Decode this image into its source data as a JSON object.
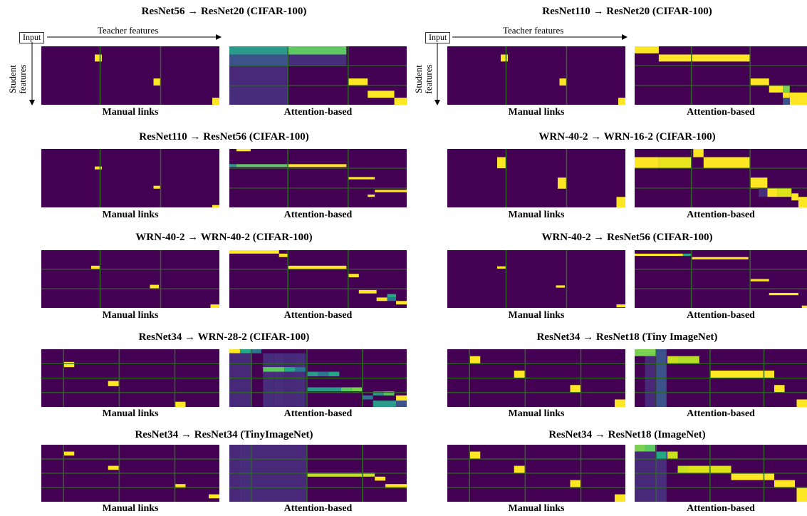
{
  "annotations": {
    "input_label": "Input",
    "teacher_features": "Teacher features",
    "student_features_line1": "Student",
    "student_features_line2": "features"
  },
  "colors": {
    "background_cell": "#440154",
    "grid_line": "#2a6b1e",
    "high": "#fde725",
    "yellow_green": "#c8e020",
    "light_green": "#7ad151",
    "green": "#5ec962",
    "teal": "#22a884",
    "blue_green": "#2a788e",
    "purple_mid": "#472d7b",
    "purple_light": "#482878"
  },
  "panels": [
    {
      "title": "ResNet56 → ResNet20 (CIFAR-100)",
      "manual_caption": "Manual links",
      "attention_caption": "Attention-based",
      "manual_grid": {
        "v": [
          0.33,
          0.67
        ],
        "h": []
      },
      "manual_cells": [
        [
          0.3,
          0.14,
          0.04,
          0.12
        ],
        [
          0.63,
          0.55,
          0.04,
          0.12
        ],
        [
          0.96,
          0.88,
          0.04,
          0.12
        ]
      ],
      "attention_grid": {
        "v": [
          0.33,
          0.67
        ],
        "h": [
          0.33,
          0.67
        ]
      },
      "attention_cells": [
        [
          0.0,
          0.0,
          0.33,
          0.14,
          "#2a9a8a"
        ],
        [
          0.33,
          0.0,
          0.33,
          0.14,
          "#5ec962"
        ],
        [
          0.0,
          0.14,
          0.33,
          0.2,
          "#3b528b"
        ],
        [
          0.33,
          0.14,
          0.33,
          0.2,
          "#472d7b"
        ],
        [
          0.0,
          0.34,
          0.33,
          0.33,
          "#482878"
        ],
        [
          0.0,
          0.67,
          0.33,
          0.33,
          "#472d7b"
        ],
        [
          0.67,
          0.55,
          0.11,
          0.12,
          "#fde725"
        ],
        [
          0.78,
          0.76,
          0.15,
          0.12,
          "#fde725"
        ],
        [
          0.93,
          0.88,
          0.07,
          0.12,
          "#fde725"
        ]
      ]
    },
    {
      "title": "ResNet110 → ResNet20 (CIFAR-100)",
      "manual_caption": "Manual links",
      "attention_caption": "Attention-based",
      "manual_grid": {
        "v": [
          0.33,
          0.67
        ],
        "h": []
      },
      "manual_cells": [
        [
          0.3,
          0.14,
          0.04,
          0.12
        ],
        [
          0.63,
          0.55,
          0.04,
          0.12
        ],
        [
          0.96,
          0.88,
          0.04,
          0.12
        ]
      ],
      "attention_grid": {
        "v": [
          0.33,
          0.67
        ],
        "h": [
          0.33,
          0.67
        ]
      },
      "attention_cells": [
        [
          0.0,
          0.0,
          0.14,
          0.12,
          "#fde725"
        ],
        [
          0.14,
          0.14,
          0.53,
          0.12,
          "#fde725"
        ],
        [
          0.67,
          0.55,
          0.11,
          0.12,
          "#fde725"
        ],
        [
          0.78,
          0.67,
          0.08,
          0.12,
          "#fde725"
        ],
        [
          0.86,
          0.67,
          0.04,
          0.12,
          "#7ad151"
        ],
        [
          0.86,
          0.79,
          0.04,
          0.12,
          "#fde725"
        ],
        [
          0.9,
          0.79,
          0.1,
          0.21,
          "#fde725"
        ],
        [
          0.86,
          0.88,
          0.04,
          0.12,
          "#3b528b"
        ]
      ]
    },
    {
      "title": "ResNet110 → ResNet56 (CIFAR-100)",
      "manual_caption": "Manual links",
      "attention_caption": "Attention-based",
      "manual_grid": {
        "v": [
          0.33,
          0.67
        ],
        "h": []
      },
      "manual_cells": [
        [
          0.3,
          0.3,
          0.04,
          0.05
        ],
        [
          0.63,
          0.63,
          0.04,
          0.05
        ],
        [
          0.96,
          0.96,
          0.04,
          0.04
        ]
      ],
      "attention_grid": {
        "v": [
          0.33,
          0.67
        ],
        "h": [
          0.33,
          0.67
        ]
      },
      "attention_cells": [
        [
          0.04,
          0.0,
          0.08,
          0.04,
          "#fde725"
        ],
        [
          0.0,
          0.26,
          0.04,
          0.05,
          "#2a9a8a"
        ],
        [
          0.04,
          0.26,
          0.29,
          0.05,
          "#5ec962"
        ],
        [
          0.33,
          0.26,
          0.33,
          0.05,
          "#fde725"
        ],
        [
          0.67,
          0.48,
          0.15,
          0.04,
          "#fde725"
        ],
        [
          0.82,
          0.7,
          0.18,
          0.04,
          "#fde725"
        ],
        [
          0.78,
          0.78,
          0.04,
          0.04,
          "#fde725"
        ]
      ]
    },
    {
      "title": "WRN-40-2 → WRN-16-2 (CIFAR-100)",
      "manual_caption": "Manual links",
      "attention_caption": "Attention-based",
      "manual_grid": {
        "v": [
          0.33,
          0.67
        ],
        "h": []
      },
      "manual_cells": [
        [
          0.28,
          0.14,
          0.05,
          0.19
        ],
        [
          0.62,
          0.49,
          0.05,
          0.19
        ],
        [
          0.95,
          0.82,
          0.05,
          0.18
        ]
      ],
      "attention_grid": {
        "v": [
          0.33,
          0.67
        ],
        "h": [
          0.33,
          0.67
        ]
      },
      "attention_cells": [
        [
          0.34,
          0.0,
          0.06,
          0.14,
          "#fde725"
        ],
        [
          0.0,
          0.14,
          0.14,
          0.19,
          "#fde725"
        ],
        [
          0.14,
          0.14,
          0.19,
          0.19,
          "#e8e41e"
        ],
        [
          0.4,
          0.14,
          0.27,
          0.19,
          "#fde725"
        ],
        [
          0.67,
          0.49,
          0.1,
          0.19,
          "#fde725"
        ],
        [
          0.77,
          0.67,
          0.06,
          0.15,
          "#fde725"
        ],
        [
          0.83,
          0.67,
          0.08,
          0.15,
          "#dce319"
        ],
        [
          0.91,
          0.76,
          0.04,
          0.12,
          "#fde725"
        ],
        [
          0.95,
          0.82,
          0.05,
          0.18,
          "#fde725"
        ],
        [
          0.72,
          0.67,
          0.05,
          0.15,
          "#472d7b"
        ]
      ]
    },
    {
      "title": "WRN-40-2 → WRN-40-2 (CIFAR-100)",
      "manual_caption": "Manual links",
      "attention_caption": "Attention-based",
      "manual_grid": {
        "v": [
          0.33,
          0.67
        ],
        "h": [
          0.33,
          0.67
        ]
      },
      "manual_cells": [
        [
          0.28,
          0.27,
          0.05,
          0.06
        ],
        [
          0.61,
          0.6,
          0.05,
          0.06
        ],
        [
          0.95,
          0.94,
          0.05,
          0.06
        ]
      ],
      "attention_grid": {
        "v": [
          0.33,
          0.67
        ],
        "h": [
          0.33,
          0.67
        ]
      },
      "attention_cells": [
        [
          0.0,
          0.0,
          0.28,
          0.06,
          "#fde725"
        ],
        [
          0.28,
          0.06,
          0.05,
          0.06,
          "#fde725"
        ],
        [
          0.33,
          0.27,
          0.33,
          0.06,
          "#fde725"
        ],
        [
          0.67,
          0.41,
          0.06,
          0.06,
          "#fde725"
        ],
        [
          0.73,
          0.69,
          0.1,
          0.06,
          "#fde725"
        ],
        [
          0.83,
          0.82,
          0.06,
          0.06,
          "#fde725"
        ],
        [
          0.89,
          0.76,
          0.05,
          0.06,
          "#22a884"
        ],
        [
          0.89,
          0.82,
          0.05,
          0.06,
          "#2a788e"
        ],
        [
          0.94,
          0.88,
          0.06,
          0.06,
          "#fde725"
        ]
      ]
    },
    {
      "title": "WRN-40-2 → ResNet56 (CIFAR-100)",
      "manual_caption": "Manual links",
      "attention_caption": "Attention-based",
      "manual_grid": {
        "v": [
          0.33,
          0.67
        ],
        "h": []
      },
      "manual_cells": [
        [
          0.28,
          0.28,
          0.05,
          0.04
        ],
        [
          0.61,
          0.61,
          0.05,
          0.04
        ],
        [
          0.95,
          0.94,
          0.05,
          0.05
        ]
      ],
      "attention_grid": {
        "v": [
          0.33,
          0.67
        ],
        "h": [
          0.33,
          0.67
        ]
      },
      "attention_cells": [
        [
          0.0,
          0.06,
          0.28,
          0.04,
          "#fde725"
        ],
        [
          0.28,
          0.06,
          0.05,
          0.04,
          "#22a884"
        ],
        [
          0.33,
          0.12,
          0.33,
          0.04,
          "#fde725"
        ],
        [
          0.67,
          0.5,
          0.11,
          0.04,
          "#fde725"
        ],
        [
          0.78,
          0.74,
          0.17,
          0.04,
          "#fde725"
        ],
        [
          0.97,
          0.96,
          0.03,
          0.04,
          "#fde725"
        ]
      ]
    },
    {
      "title": "ResNet34 → WRN-28-2 (CIFAR-100)",
      "manual_caption": "Manual links",
      "attention_caption": "Attention-based",
      "manual_grid": {
        "v": [
          0.125,
          0.4375,
          0.75
        ],
        "h": [
          0.25,
          0.5,
          0.75
        ]
      },
      "manual_cells": [
        [
          0.125,
          0.22,
          0.06,
          0.09
        ],
        [
          0.375,
          0.55,
          0.06,
          0.09
        ],
        [
          0.75,
          0.91,
          0.06,
          0.09
        ]
      ],
      "attention_grid": {
        "v": [
          0.125,
          0.4375,
          0.75
        ],
        "h": [
          0.25,
          0.5,
          0.75
        ]
      },
      "attention_cells": [
        [
          0.0,
          0.0,
          0.06,
          0.07,
          "#fde725"
        ],
        [
          0.06,
          0.0,
          0.06,
          0.07,
          "#22a884"
        ],
        [
          0.12,
          0.0,
          0.06,
          0.07,
          "#2a788e"
        ],
        [
          0.0,
          0.07,
          0.125,
          0.93,
          "#482878"
        ],
        [
          0.19,
          0.07,
          0.06,
          0.93,
          "#472d7b"
        ],
        [
          0.25,
          0.07,
          0.06,
          0.93,
          "#472d7b"
        ],
        [
          0.31,
          0.07,
          0.06,
          0.93,
          "#482878"
        ],
        [
          0.37,
          0.07,
          0.06,
          0.93,
          "#472d7b"
        ],
        [
          0.19,
          0.31,
          0.12,
          0.08,
          "#5ec962"
        ],
        [
          0.31,
          0.31,
          0.06,
          0.08,
          "#22a884"
        ],
        [
          0.37,
          0.31,
          0.06,
          0.08,
          "#2a788e"
        ],
        [
          0.44,
          0.39,
          0.06,
          0.08,
          "#2a9a8a"
        ],
        [
          0.5,
          0.39,
          0.06,
          0.08,
          "#2a788e"
        ],
        [
          0.56,
          0.39,
          0.06,
          0.08,
          "#22a884"
        ],
        [
          0.44,
          0.66,
          0.19,
          0.07,
          "#2a9a8a"
        ],
        [
          0.63,
          0.66,
          0.06,
          0.07,
          "#5ec962"
        ],
        [
          0.69,
          0.66,
          0.06,
          0.07,
          "#7ad151"
        ],
        [
          0.81,
          0.73,
          0.06,
          0.07,
          "#2a9a8a"
        ],
        [
          0.87,
          0.73,
          0.06,
          0.07,
          "#5ec962"
        ],
        [
          0.75,
          0.8,
          0.06,
          0.07,
          "#2a788e"
        ],
        [
          0.94,
          0.8,
          0.06,
          0.09,
          "#fde725"
        ],
        [
          0.81,
          0.89,
          0.13,
          0.11,
          "#2a9a8a"
        ],
        [
          0.94,
          0.89,
          0.06,
          0.11,
          "#3b528b"
        ]
      ]
    },
    {
      "title": "ResNet34 → ResNet18 (Tiny ImageNet)",
      "manual_caption": "Manual links",
      "attention_caption": "Attention-based",
      "manual_grid": {
        "v": [
          0.125,
          0.4375,
          0.75
        ],
        "h": [
          0.25,
          0.5,
          0.75
        ]
      },
      "manual_cells": [
        [
          0.125,
          0.12,
          0.06,
          0.13
        ],
        [
          0.375,
          0.37,
          0.06,
          0.13
        ],
        [
          0.69,
          0.62,
          0.06,
          0.13
        ],
        [
          0.94,
          0.87,
          0.06,
          0.13
        ]
      ],
      "attention_grid": {
        "v": [
          0.125,
          0.4375,
          0.75
        ],
        "h": [
          0.25,
          0.5,
          0.75
        ]
      },
      "attention_cells": [
        [
          0.0,
          0.0,
          0.125,
          0.12,
          "#7ad151"
        ],
        [
          0.125,
          0.0,
          0.06,
          1.0,
          "#3b528b"
        ],
        [
          0.19,
          0.12,
          0.06,
          0.13,
          "#c8e020"
        ],
        [
          0.25,
          0.12,
          0.125,
          0.13,
          "#b5de2b"
        ],
        [
          0.44,
          0.37,
          0.37,
          0.13,
          "#fde725"
        ],
        [
          0.81,
          0.62,
          0.06,
          0.13,
          "#fde725"
        ],
        [
          0.94,
          0.87,
          0.06,
          0.13,
          "#fde725"
        ],
        [
          0.06,
          0.12,
          0.06,
          0.88,
          "#482878"
        ]
      ]
    },
    {
      "title": "ResNet34 → ResNet34 (TinyImageNet)",
      "manual_caption": "Manual links",
      "attention_caption": "Attention-based",
      "manual_grid": {
        "v": [
          0.125,
          0.4375,
          0.75
        ],
        "h": [
          0.25,
          0.5,
          0.75
        ]
      },
      "manual_cells": [
        [
          0.125,
          0.12,
          0.06,
          0.07
        ],
        [
          0.375,
          0.37,
          0.06,
          0.07
        ],
        [
          0.75,
          0.69,
          0.06,
          0.07
        ],
        [
          0.94,
          0.87,
          0.06,
          0.07
        ]
      ],
      "attention_grid": {
        "v": [
          0.125,
          0.4375,
          0.75
        ],
        "h": [
          0.25,
          0.5,
          0.75
        ]
      },
      "attention_cells": [
        [
          0.0,
          0.0,
          0.4375,
          1.0,
          "#482878"
        ],
        [
          0.06,
          0.0,
          0.06,
          1.0,
          "#472d7b"
        ],
        [
          0.44,
          0.49,
          0.38,
          0.07,
          "#c8e020"
        ],
        [
          0.82,
          0.56,
          0.06,
          0.07,
          "#fde725"
        ],
        [
          0.88,
          0.69,
          0.12,
          0.07,
          "#fde725"
        ]
      ]
    },
    {
      "title": "ResNet34 → ResNet18 (ImageNet)",
      "manual_caption": "Manual links",
      "attention_caption": "Attention-based",
      "manual_grid": {
        "v": [
          0.125,
          0.4375,
          0.75
        ],
        "h": [
          0.25,
          0.5,
          0.75
        ]
      },
      "manual_cells": [
        [
          0.125,
          0.12,
          0.06,
          0.13
        ],
        [
          0.375,
          0.37,
          0.06,
          0.13
        ],
        [
          0.69,
          0.62,
          0.06,
          0.13
        ],
        [
          0.94,
          0.87,
          0.06,
          0.13
        ]
      ],
      "attention_grid": {
        "v": [
          0.125,
          0.4375,
          0.75
        ],
        "h": [
          0.25,
          0.5,
          0.75
        ]
      },
      "attention_cells": [
        [
          0.0,
          0.0,
          0.06,
          0.12,
          "#7ad151"
        ],
        [
          0.06,
          0.0,
          0.06,
          0.12,
          "#5ec962"
        ],
        [
          0.125,
          0.12,
          0.06,
          0.13,
          "#22a884"
        ],
        [
          0.19,
          0.12,
          0.06,
          0.13,
          "#c8e020"
        ],
        [
          0.25,
          0.37,
          0.06,
          0.13,
          "#c8e020"
        ],
        [
          0.31,
          0.37,
          0.25,
          0.13,
          "#dce319"
        ],
        [
          0.56,
          0.5,
          0.25,
          0.12,
          "#fde725"
        ],
        [
          0.81,
          0.62,
          0.12,
          0.13,
          "#fde725"
        ],
        [
          0.94,
          0.75,
          0.06,
          0.25,
          "#fde725"
        ],
        [
          0.125,
          0.25,
          0.06,
          0.75,
          "#472d7b"
        ],
        [
          0.0,
          0.12,
          0.125,
          0.88,
          "#482878"
        ]
      ]
    }
  ]
}
